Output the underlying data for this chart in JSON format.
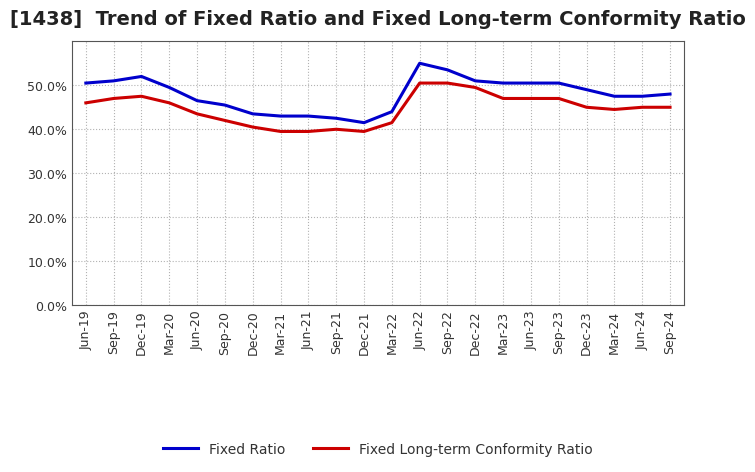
{
  "title": "[1438]  Trend of Fixed Ratio and Fixed Long-term Conformity Ratio",
  "x_labels": [
    "Jun-19",
    "Sep-19",
    "Dec-19",
    "Mar-20",
    "Jun-20",
    "Sep-20",
    "Dec-20",
    "Mar-21",
    "Jun-21",
    "Sep-21",
    "Dec-21",
    "Mar-22",
    "Jun-22",
    "Sep-22",
    "Dec-22",
    "Mar-23",
    "Jun-23",
    "Sep-23",
    "Dec-23",
    "Mar-24",
    "Jun-24",
    "Sep-24"
  ],
  "fixed_ratio": [
    50.5,
    51.0,
    52.0,
    49.5,
    46.5,
    45.5,
    43.5,
    43.0,
    43.0,
    42.5,
    41.5,
    44.0,
    55.0,
    53.5,
    51.0,
    50.5,
    50.5,
    50.5,
    49.0,
    47.5,
    47.5,
    48.0
  ],
  "fixed_lt_ratio": [
    46.0,
    47.0,
    47.5,
    46.0,
    43.5,
    42.0,
    40.5,
    39.5,
    39.5,
    40.0,
    39.5,
    41.5,
    50.5,
    50.5,
    49.5,
    47.0,
    47.0,
    47.0,
    45.0,
    44.5,
    45.0,
    45.0
  ],
  "fixed_ratio_color": "#0000cc",
  "fixed_lt_ratio_color": "#cc0000",
  "ylim": [
    0,
    60
  ],
  "yticks": [
    0,
    10,
    20,
    30,
    40,
    50
  ],
  "background_color": "#ffffff",
  "grid_color": "#aaaaaa",
  "title_fontsize": 14,
  "legend_fontsize": 10,
  "tick_fontsize": 9,
  "line_width": 2.2
}
